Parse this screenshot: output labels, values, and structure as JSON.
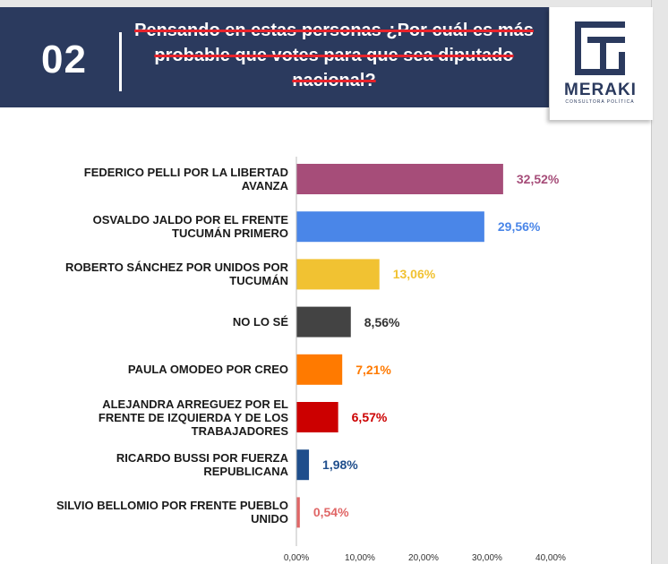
{
  "header": {
    "number": "02",
    "question": "Pensando en estas personas ¿Por cuál es más probable que votes para que sea diputado nacional?",
    "background": "#2b3a5e",
    "strike_color": "#e8232b"
  },
  "logo": {
    "name": "MERAKI",
    "subtitle": "CONSULTORA POLÍTICA",
    "color": "#2b3a5e"
  },
  "chart_data": {
    "type": "bar",
    "orientation": "horizontal",
    "categories": [
      "FEDERICO PELLI POR LA LIBERTAD AVANZA",
      "OSVALDO JALDO POR EL FRENTE TUCUMÁN PRIMERO",
      "ROBERTO SÁNCHEZ POR UNIDOS POR TUCUMÁN",
      "NO LO SÉ",
      "PAULA OMODEO POR CREO",
      "ALEJANDRA ARREGUEZ POR EL FRENTE DE IZQUIERDA Y DE LOS TRABAJADORES",
      "RICARDO BUSSI POR FUERZA REPUBLICANA",
      "SILVIO BELLOMIO POR FRENTE PUEBLO UNIDO"
    ],
    "values": [
      32.52,
      29.56,
      13.06,
      8.56,
      7.21,
      6.57,
      1.98,
      0.54
    ],
    "value_labels": [
      "32,52%",
      "29,56%",
      "13,06%",
      "8,56%",
      "7,21%",
      "6,57%",
      "1,98%",
      "0,54%"
    ],
    "colors": [
      "#a64d79",
      "#4a86e8",
      "#f1c232",
      "#434343",
      "#ff7a00",
      "#cc0000",
      "#1f4e8c",
      "#e06666"
    ],
    "label_colors": [
      "#a64d79",
      "#4a86e8",
      "#f1c232",
      "#333333",
      "#ff7a00",
      "#cc0000",
      "#1f4e8c",
      "#e06666"
    ],
    "xlim": [
      0,
      40
    ],
    "xticks": [
      0,
      10,
      20,
      30,
      40
    ],
    "xtick_labels": [
      "0,00%",
      "10,00%",
      "20,00%",
      "30,00%",
      "40,00%"
    ],
    "grid": false,
    "legend": "none"
  }
}
